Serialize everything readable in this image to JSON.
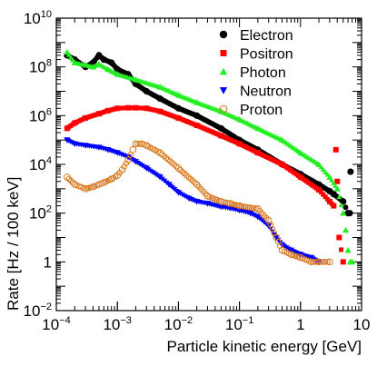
{
  "chart_data": {
    "type": "scatter",
    "title": "",
    "xlabel": "Particle kinetic energy [GeV]",
    "ylabel": "Rate [Hz / 100 keV]",
    "xscale": "log",
    "yscale": "log",
    "xlim": [
      0.0001,
      10
    ],
    "ylim": [
      0.01,
      10000000000
    ],
    "x_ticks": [
      {
        "value": 0.0001,
        "base": "10",
        "exp": "−4"
      },
      {
        "value": 0.001,
        "base": "10",
        "exp": "−3"
      },
      {
        "value": 0.01,
        "base": "10",
        "exp": "−2"
      },
      {
        "value": 0.1,
        "base": "10",
        "exp": "−1"
      },
      {
        "value": 1,
        "base": "1",
        "exp": ""
      },
      {
        "value": 10,
        "base": "10",
        "exp": ""
      }
    ],
    "y_ticks": [
      {
        "value": 0.01,
        "base": "10",
        "exp": "−2"
      },
      {
        "value": 1,
        "base": "1",
        "exp": ""
      },
      {
        "value": 100,
        "base": "10",
        "exp": "2"
      },
      {
        "value": 10000,
        "base": "10",
        "exp": "4"
      },
      {
        "value": 1000000,
        "base": "10",
        "exp": "6"
      },
      {
        "value": 100000000,
        "base": "10",
        "exp": "8"
      },
      {
        "value": 10000000000,
        "base": "10",
        "exp": "10"
      }
    ],
    "legend_position": "top-right",
    "grid": false,
    "series": [
      {
        "name": "Electron",
        "color": "#000000",
        "marker": "circle",
        "x": [
          0.00015,
          0.0002,
          0.0003,
          0.0004,
          0.0005,
          0.0006,
          0.0008,
          0.001,
          0.0015,
          0.002,
          0.003,
          0.005,
          0.01,
          0.02,
          0.05,
          0.1,
          0.2,
          0.5,
          1,
          2,
          3,
          3.5,
          5,
          6,
          6.4,
          6.6
        ],
        "y": [
          300000000.0,
          200000000.0,
          100000000.0,
          150000000.0,
          300000000.0,
          200000000.0,
          150000000.0,
          80000000.0,
          50000000.0,
          20000000.0,
          10000000.0,
          5000000.0,
          2000000.0,
          1000000.0,
          300000.0,
          100000.0,
          40000.0,
          10000.0,
          4000,
          1500,
          800,
          600,
          300,
          100,
          100,
          5000
        ]
      },
      {
        "name": "Positron",
        "color": "#ff0000",
        "marker": "square",
        "x": [
          0.00015,
          0.0002,
          0.0003,
          0.0005,
          0.0007,
          0.001,
          0.0015,
          0.002,
          0.003,
          0.005,
          0.01,
          0.02,
          0.05,
          0.1,
          0.2,
          0.5,
          1,
          2,
          3,
          3.5,
          3.8,
          4,
          4.3,
          5
        ],
        "y": [
          300000.0,
          500000.0,
          800000.0,
          1200000.0,
          1600000.0,
          2000000.0,
          2100000.0,
          2100000.0,
          2000000.0,
          1500000.0,
          800000.0,
          400000.0,
          150000.0,
          70000.0,
          30000.0,
          10000.0,
          3000,
          900,
          300,
          200,
          40000.0,
          2000,
          10,
          1
        ]
      },
      {
        "name": "Photon",
        "color": "#22ee22",
        "marker": "triangle-up",
        "x": [
          0.00015,
          0.0002,
          0.0003,
          0.0004,
          0.0005,
          0.0007,
          0.001,
          0.002,
          0.005,
          0.01,
          0.02,
          0.05,
          0.1,
          0.2,
          0.5,
          1,
          2,
          3,
          4,
          5,
          5.5,
          6,
          6.5,
          7
        ],
        "y": [
          400000000.0,
          150000000.0,
          120000000.0,
          100000000.0,
          130000000.0,
          80000000.0,
          50000000.0,
          30000000.0,
          15000000.0,
          7000000.0,
          3500000.0,
          1500000.0,
          700000.0,
          300000.0,
          100000.0,
          30000.0,
          10000.0,
          3000,
          1000,
          100,
          20,
          3,
          1,
          1
        ]
      },
      {
        "name": "Neutron",
        "color": "#0000ff",
        "marker": "triangle-down",
        "x": [
          0.00015,
          0.0002,
          0.0003,
          0.0005,
          0.0007,
          0.001,
          0.0015,
          0.002,
          0.003,
          0.005,
          0.007,
          0.01,
          0.015,
          0.02,
          0.03,
          0.05,
          0.07,
          0.1,
          0.15,
          0.2,
          0.3,
          0.4,
          0.5,
          0.7,
          1,
          1.5,
          2
        ],
        "y": [
          100000.0,
          70000.0,
          60000.0,
          50000.0,
          40000.0,
          30000.0,
          20000.0,
          13000.0,
          7000,
          3000,
          1500,
          700,
          400,
          300,
          250,
          180,
          160,
          130,
          100,
          70,
          30,
          10,
          5,
          3,
          2,
          1.5,
          1
        ]
      },
      {
        "name": "Proton",
        "color": "#d8781e",
        "marker": "circle-open",
        "x": [
          0.00015,
          0.0002,
          0.0003,
          0.0004,
          0.0005,
          0.0006,
          0.0008,
          0.001,
          0.0012,
          0.0015,
          0.0018,
          0.002,
          0.0025,
          0.003,
          0.005,
          0.01,
          0.02,
          0.03,
          0.05,
          0.07,
          0.1,
          0.2,
          0.3,
          0.4,
          0.5,
          0.7,
          1,
          1.5,
          2,
          3
        ],
        "y": [
          3000,
          1500,
          1000,
          1200,
          1500,
          1800,
          2500,
          3500,
          6000,
          15000.0,
          40000.0,
          70000.0,
          70000.0,
          60000.0,
          30000.0,
          7000,
          1500,
          500,
          300,
          250,
          200,
          150,
          50,
          10,
          3,
          2,
          1.5,
          1,
          1,
          1
        ]
      }
    ]
  }
}
